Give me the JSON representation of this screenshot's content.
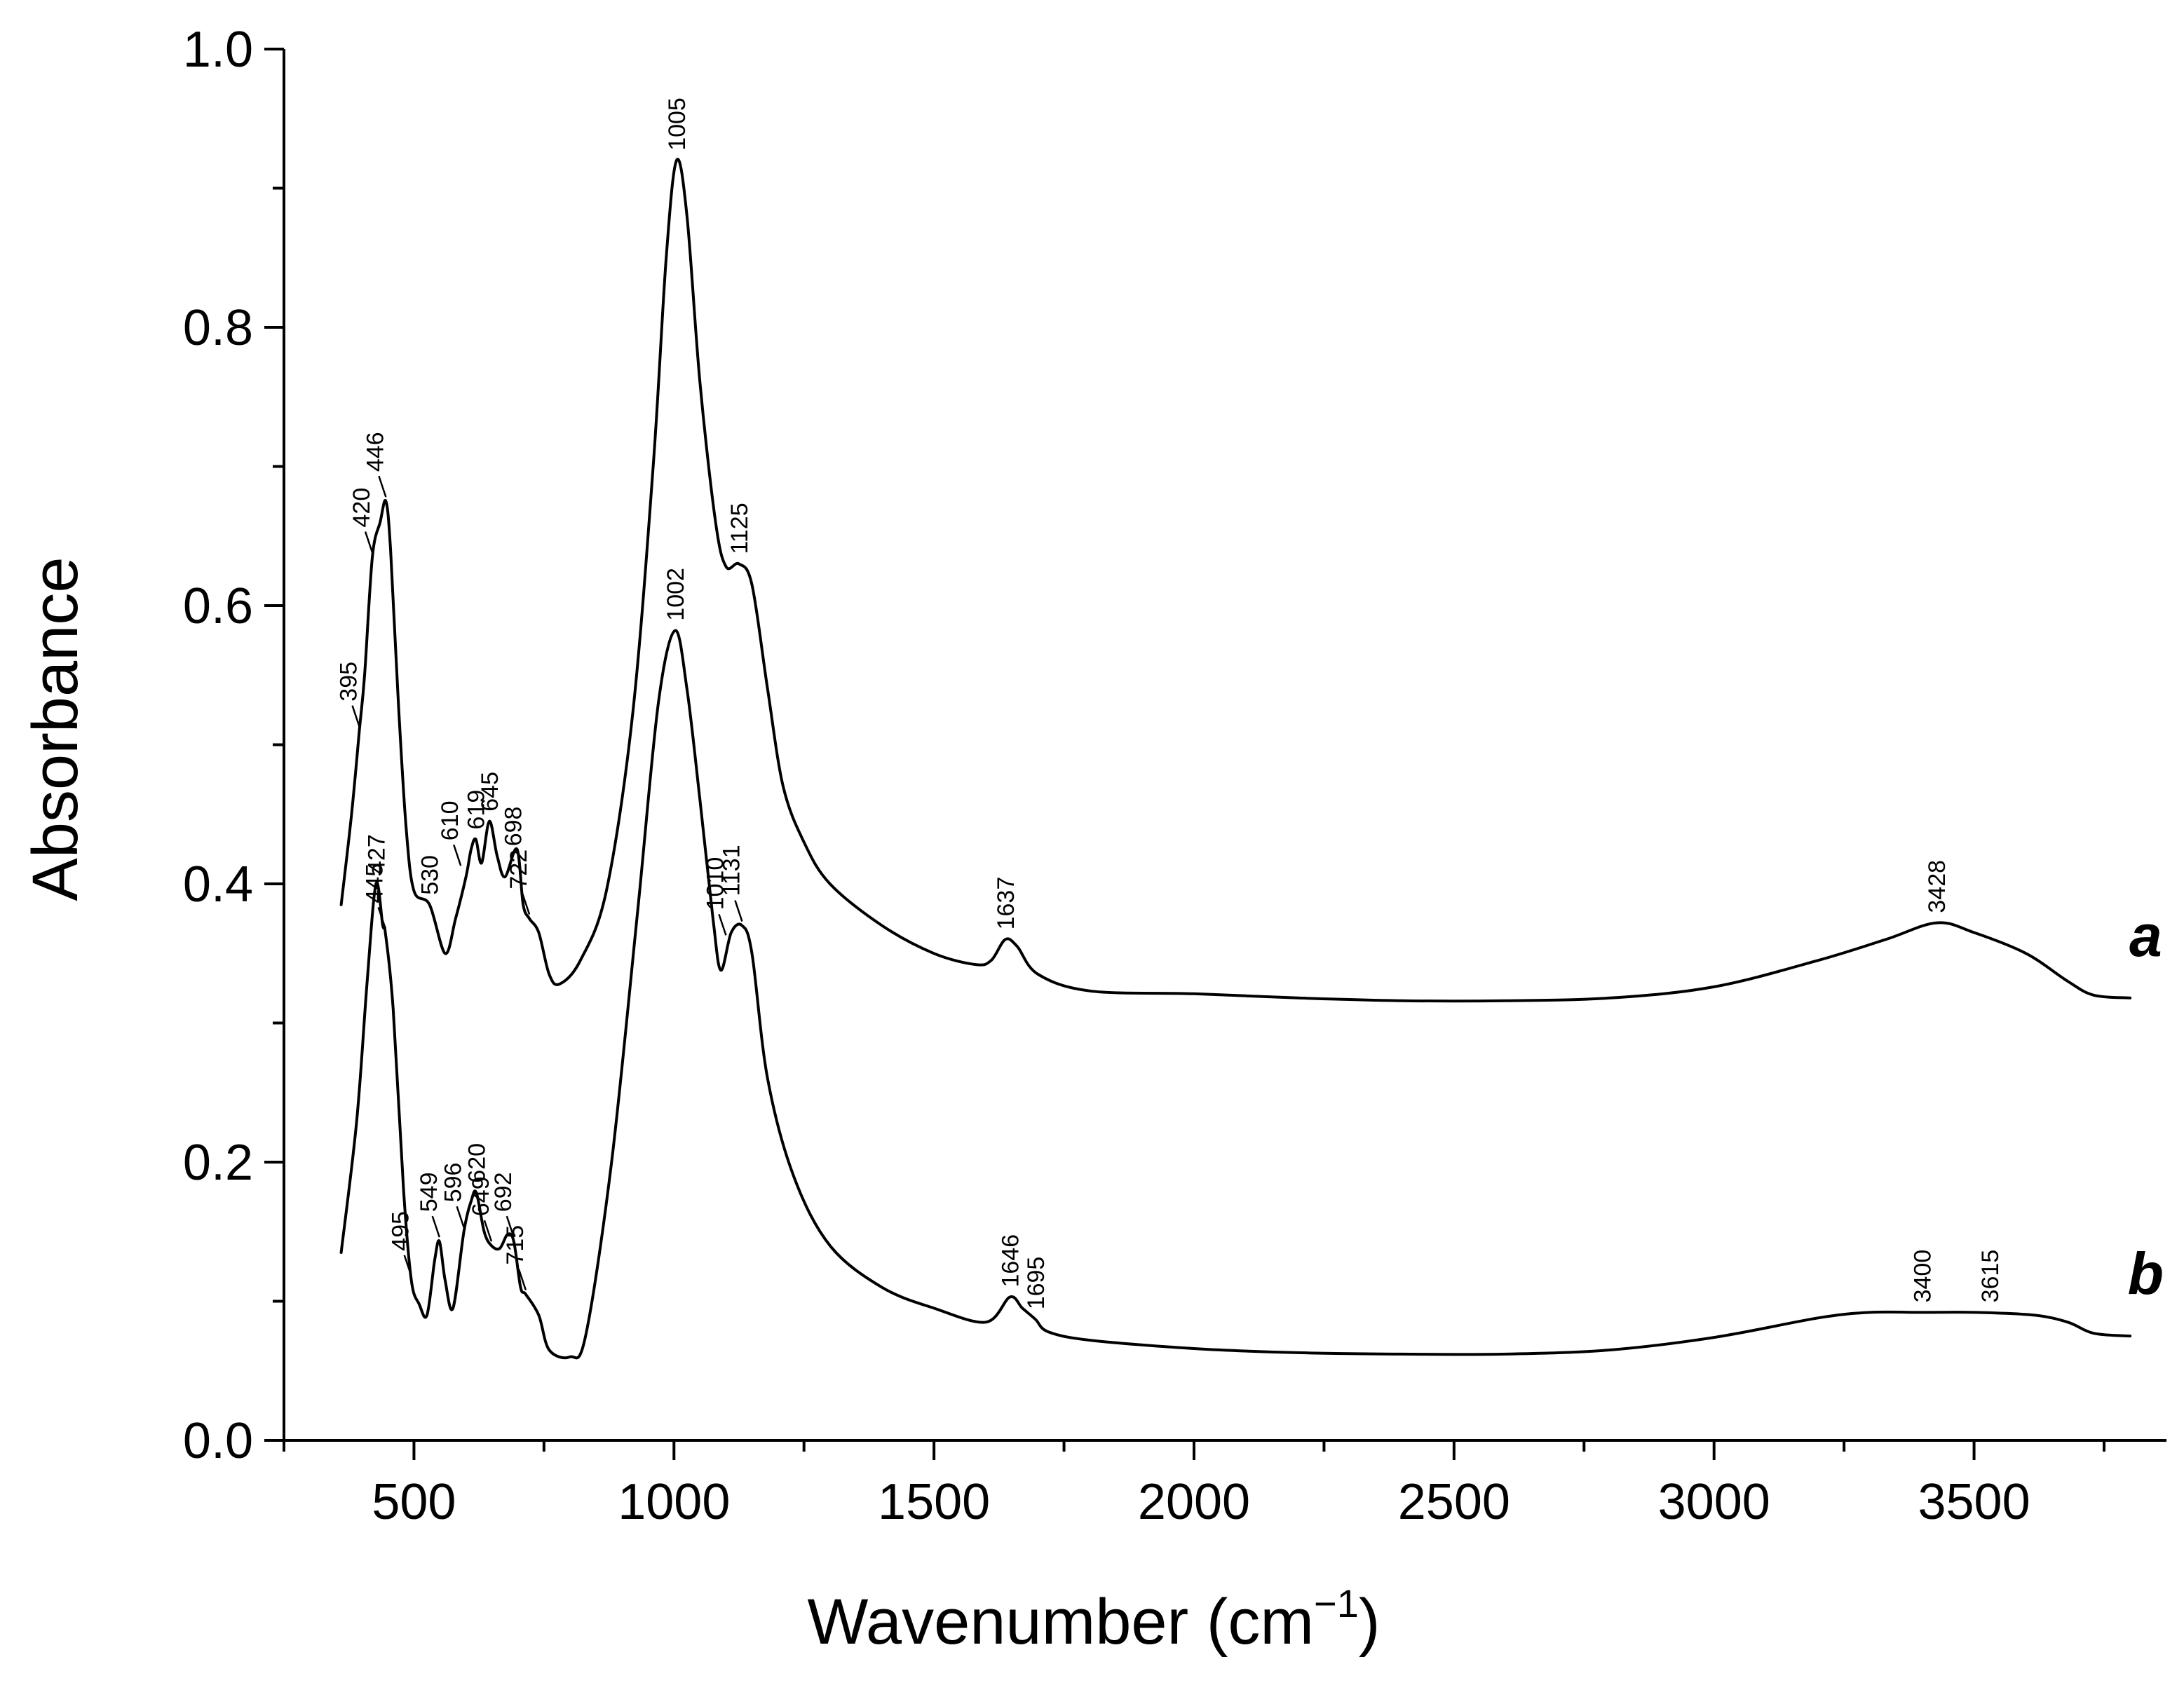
{
  "chart_data": {
    "type": "line",
    "title": "",
    "xlabel": "Wavenumber (cm",
    "xlabel_sup": "−1",
    "xlabel_close": ")",
    "ylabel": "Absorbance",
    "xlim": [
      250,
      3870
    ],
    "ylim": [
      0.0,
      1.0
    ],
    "x_ticks": [
      500,
      1000,
      1500,
      2000,
      2500,
      3000,
      3500
    ],
    "x_tick_labels": [
      "500",
      "1000",
      "1500",
      "2000",
      "2500",
      "3000",
      "3500"
    ],
    "x_minor_ticks": [
      250,
      750,
      1250,
      1750,
      2250,
      2750,
      3250,
      3750
    ],
    "y_ticks": [
      0.0,
      0.2,
      0.4,
      0.6,
      0.8,
      1.0
    ],
    "y_tick_labels": [
      "0.0",
      "0.2",
      "0.4",
      "0.6",
      "0.8",
      "1.0"
    ],
    "y_minor_ticks": [
      0.1,
      0.3,
      0.5,
      0.7,
      0.9
    ],
    "series": [
      {
        "name": "a",
        "points": [
          [
            360,
            0.385
          ],
          [
            380,
            0.45
          ],
          [
            395,
            0.51
          ],
          [
            405,
            0.55
          ],
          [
            420,
            0.635
          ],
          [
            435,
            0.66
          ],
          [
            446,
            0.675
          ],
          [
            455,
            0.64
          ],
          [
            470,
            0.53
          ],
          [
            485,
            0.44
          ],
          [
            500,
            0.395
          ],
          [
            530,
            0.385
          ],
          [
            560,
            0.35
          ],
          [
            580,
            0.375
          ],
          [
            600,
            0.405
          ],
          [
            610,
            0.425
          ],
          [
            619,
            0.432
          ],
          [
            630,
            0.415
          ],
          [
            645,
            0.445
          ],
          [
            660,
            0.42
          ],
          [
            675,
            0.405
          ],
          [
            698,
            0.425
          ],
          [
            710,
            0.385
          ],
          [
            722,
            0.375
          ],
          [
            740,
            0.365
          ],
          [
            760,
            0.335
          ],
          [
            780,
            0.328
          ],
          [
            820,
            0.345
          ],
          [
            870,
            0.395
          ],
          [
            920,
            0.52
          ],
          [
            960,
            0.7
          ],
          [
            985,
            0.85
          ],
          [
            1005,
            0.92
          ],
          [
            1025,
            0.88
          ],
          [
            1050,
            0.76
          ],
          [
            1080,
            0.66
          ],
          [
            1100,
            0.628
          ],
          [
            1125,
            0.63
          ],
          [
            1150,
            0.615
          ],
          [
            1180,
            0.54
          ],
          [
            1210,
            0.47
          ],
          [
            1250,
            0.43
          ],
          [
            1300,
            0.4
          ],
          [
            1400,
            0.37
          ],
          [
            1500,
            0.35
          ],
          [
            1580,
            0.342
          ],
          [
            1610,
            0.345
          ],
          [
            1637,
            0.36
          ],
          [
            1660,
            0.355
          ],
          [
            1700,
            0.335
          ],
          [
            1800,
            0.323
          ],
          [
            2000,
            0.321
          ],
          [
            2200,
            0.318
          ],
          [
            2400,
            0.316
          ],
          [
            2600,
            0.316
          ],
          [
            2800,
            0.318
          ],
          [
            3000,
            0.326
          ],
          [
            3200,
            0.345
          ],
          [
            3330,
            0.36
          ],
          [
            3428,
            0.372
          ],
          [
            3500,
            0.365
          ],
          [
            3600,
            0.35
          ],
          [
            3680,
            0.33
          ],
          [
            3730,
            0.32
          ],
          [
            3800,
            0.318
          ]
        ]
      },
      {
        "name": "b",
        "points": [
          [
            360,
            0.135
          ],
          [
            390,
            0.23
          ],
          [
            410,
            0.33
          ],
          [
            427,
            0.4
          ],
          [
            440,
            0.37
          ],
          [
            445,
            0.365
          ],
          [
            460,
            0.31
          ],
          [
            480,
            0.18
          ],
          [
            495,
            0.115
          ],
          [
            510,
            0.098
          ],
          [
            525,
            0.09
          ],
          [
            540,
            0.13
          ],
          [
            549,
            0.143
          ],
          [
            560,
            0.115
          ],
          [
            575,
            0.095
          ],
          [
            596,
            0.15
          ],
          [
            610,
            0.172
          ],
          [
            620,
            0.178
          ],
          [
            635,
            0.15
          ],
          [
            649,
            0.14
          ],
          [
            665,
            0.138
          ],
          [
            680,
            0.148
          ],
          [
            692,
            0.143
          ],
          [
            705,
            0.11
          ],
          [
            715,
            0.105
          ],
          [
            740,
            0.09
          ],
          [
            760,
            0.065
          ],
          [
            800,
            0.06
          ],
          [
            830,
            0.075
          ],
          [
            880,
            0.2
          ],
          [
            930,
            0.38
          ],
          [
            970,
            0.53
          ],
          [
            1002,
            0.582
          ],
          [
            1025,
            0.54
          ],
          [
            1050,
            0.46
          ],
          [
            1075,
            0.375
          ],
          [
            1090,
            0.338
          ],
          [
            1110,
            0.365
          ],
          [
            1131,
            0.37
          ],
          [
            1150,
            0.35
          ],
          [
            1180,
            0.26
          ],
          [
            1230,
            0.19
          ],
          [
            1300,
            0.14
          ],
          [
            1400,
            0.11
          ],
          [
            1500,
            0.095
          ],
          [
            1600,
            0.085
          ],
          [
            1646,
            0.103
          ],
          [
            1670,
            0.095
          ],
          [
            1695,
            0.087
          ],
          [
            1720,
            0.078
          ],
          [
            1800,
            0.072
          ],
          [
            2000,
            0.066
          ],
          [
            2200,
            0.063
          ],
          [
            2400,
            0.062
          ],
          [
            2600,
            0.062
          ],
          [
            2800,
            0.065
          ],
          [
            3000,
            0.074
          ],
          [
            3200,
            0.088
          ],
          [
            3300,
            0.092
          ],
          [
            3400,
            0.092
          ],
          [
            3500,
            0.092
          ],
          [
            3615,
            0.09
          ],
          [
            3680,
            0.085
          ],
          [
            3730,
            0.077
          ],
          [
            3800,
            0.075
          ]
        ]
      }
    ],
    "peak_annotations": [
      {
        "text": "395",
        "x": 395,
        "y": 0.51,
        "series": "a",
        "leader": true
      },
      {
        "text": "420",
        "x": 420,
        "y": 0.635,
        "series": "a",
        "leader": true
      },
      {
        "text": "446",
        "x": 446,
        "y": 0.675,
        "series": "a",
        "leader": true
      },
      {
        "text": "530",
        "x": 530,
        "y": 0.385,
        "series": "a",
        "leader": false
      },
      {
        "text": "610",
        "x": 590,
        "y": 0.41,
        "series": "a",
        "leader": true
      },
      {
        "text": "619",
        "x": 619,
        "y": 0.432,
        "series": "a",
        "leader": false
      },
      {
        "text": "645",
        "x": 645,
        "y": 0.445,
        "series": "a",
        "leader": false
      },
      {
        "text": "698",
        "x": 690,
        "y": 0.42,
        "series": "a",
        "leader": false
      },
      {
        "text": "722",
        "x": 722,
        "y": 0.375,
        "series": "a",
        "leader": true
      },
      {
        "text": "1005",
        "x": 1005,
        "y": 0.92,
        "series": "a",
        "leader": false
      },
      {
        "text": "1125",
        "x": 1125,
        "y": 0.63,
        "series": "a",
        "leader": false
      },
      {
        "text": "1637",
        "x": 1637,
        "y": 0.36,
        "series": "a",
        "leader": false
      },
      {
        "text": "3428",
        "x": 3428,
        "y": 0.372,
        "series": "a",
        "leader": false
      },
      {
        "text": "427",
        "x": 427,
        "y": 0.4,
        "series": "b",
        "leader": false
      },
      {
        "text": "445",
        "x": 445,
        "y": 0.365,
        "series": "b",
        "leader": true
      },
      {
        "text": "495",
        "x": 495,
        "y": 0.115,
        "series": "b",
        "leader": true
      },
      {
        "text": "549",
        "x": 549,
        "y": 0.143,
        "series": "b",
        "leader": true
      },
      {
        "text": "596",
        "x": 596,
        "y": 0.15,
        "series": "b",
        "leader": true
      },
      {
        "text": "620",
        "x": 620,
        "y": 0.178,
        "series": "b",
        "leader": false
      },
      {
        "text": "649",
        "x": 649,
        "y": 0.14,
        "series": "b",
        "leader": true
      },
      {
        "text": "692",
        "x": 692,
        "y": 0.143,
        "series": "b",
        "leader": true
      },
      {
        "text": "715",
        "x": 715,
        "y": 0.105,
        "series": "b",
        "leader": true
      },
      {
        "text": "1002",
        "x": 1002,
        "y": 0.582,
        "series": "b",
        "leader": false
      },
      {
        "text": "1010",
        "x": 1100,
        "y": 0.36,
        "series": "b",
        "leader": true
      },
      {
        "text": "1131",
        "x": 1131,
        "y": 0.37,
        "series": "b",
        "leader": true
      },
      {
        "text": "1646",
        "x": 1646,
        "y": 0.103,
        "series": "b",
        "leader": false
      },
      {
        "text": "1695",
        "x": 1695,
        "y": 0.087,
        "series": "b",
        "leader": false
      },
      {
        "text": "3400",
        "x": 3400,
        "y": 0.092,
        "series": "b",
        "leader": false
      },
      {
        "text": "3615",
        "x": 3530,
        "y": 0.092,
        "series": "b",
        "leader": false
      }
    ],
    "series_labels": [
      {
        "text": "a",
        "series": "a",
        "x": 3830,
        "y": 0.348
      },
      {
        "text": "b",
        "series": "b",
        "x": 3830,
        "y": 0.105
      }
    ]
  }
}
